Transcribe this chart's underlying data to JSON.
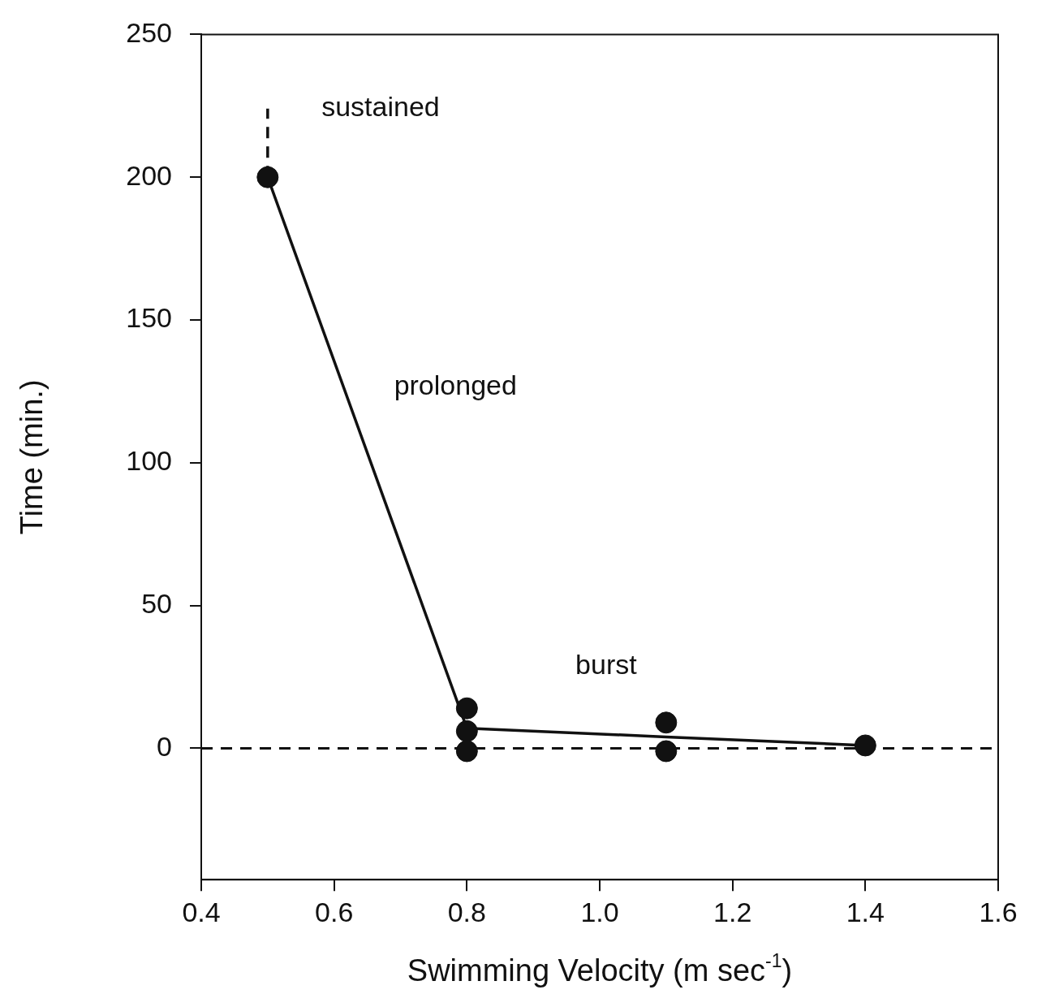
{
  "chart_data": {
    "type": "scatter",
    "xlabel": "Swimming Velocity (m sec$^{-1}$)",
    "ylabel": "Time (min.)",
    "xlim": [
      0.4,
      1.6
    ],
    "xticks": [
      0.4,
      0.6,
      0.8,
      {
        "value": 1,
        "label": "1.0"
      },
      1.2,
      1.4,
      1.6
    ],
    "ylim": [
      -46,
      250
    ],
    "yticks": [
      0,
      50,
      100,
      150,
      200,
      250
    ],
    "grid": false,
    "legend": false,
    "marker": "circle",
    "series": [
      {
        "color": "#111111",
        "x": [
          0.5,
          0.8,
          0.8,
          0.8,
          1.1,
          1.1,
          1.4
        ],
        "values": [
          200,
          14,
          6,
          -1,
          9,
          -1,
          1
        ]
      },
      {
        "type": "line",
        "color": "#111111",
        "marker": "none",
        "line_style": "solid",
        "x": [
          0.5,
          0.8,
          1.1,
          1.4
        ],
        "values": [
          200,
          7,
          4,
          1
        ]
      },
      {
        "type": "line",
        "color": "#111111",
        "marker": "none",
        "line_style": "dashed",
        "x": [
          0.5,
          0.5
        ],
        "values": [
          200,
          224
        ]
      }
    ],
    "ref_lines": [
      {
        "axis": "y",
        "value": 0,
        "line_style": "dashed",
        "color": "#111111"
      }
    ],
    "annotations": [
      "sustained",
      "prolonged",
      "burst"
    ]
  }
}
